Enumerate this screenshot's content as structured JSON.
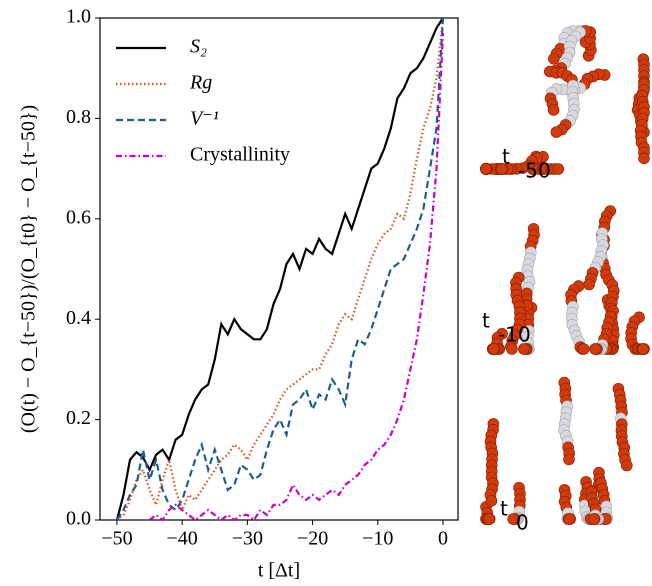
{
  "chart_data": {
    "type": "line",
    "xlabel": "t [Δt]",
    "ylabel": "(O(t) − O_{t−50})/(O_{t0} − O_{t−50})",
    "x": [
      -50,
      -49,
      -48,
      -47,
      -46,
      -45,
      -44,
      -43,
      -42,
      -41,
      -40,
      -39,
      -38,
      -37,
      -36,
      -35,
      -34,
      -33,
      -32,
      -31,
      -30,
      -29,
      -28,
      -27,
      -26,
      -25,
      -24,
      -23,
      -22,
      -21,
      -20,
      -19,
      -18,
      -17,
      -16,
      -15,
      -14,
      -13,
      -12,
      -11,
      -10,
      -9,
      -8,
      -7,
      -6,
      -5,
      -4,
      -3,
      -2,
      -1,
      0
    ],
    "series": [
      {
        "name": "S₂",
        "color": "#000000",
        "dash": "solid",
        "values": [
          0,
          0.05,
          0.12,
          0.135,
          0.125,
          0.1,
          0.13,
          0.14,
          0.12,
          0.16,
          0.17,
          0.21,
          0.24,
          0.26,
          0.27,
          0.32,
          0.39,
          0.37,
          0.4,
          0.38,
          0.37,
          0.36,
          0.36,
          0.38,
          0.43,
          0.46,
          0.51,
          0.53,
          0.5,
          0.54,
          0.53,
          0.56,
          0.54,
          0.53,
          0.57,
          0.61,
          0.58,
          0.62,
          0.66,
          0.7,
          0.71,
          0.74,
          0.78,
          0.84,
          0.86,
          0.89,
          0.9,
          0.92,
          0.95,
          0.98,
          1.0
        ]
      },
      {
        "name": "Rg",
        "color": "#d9541c",
        "dash": "dotted",
        "values": [
          0,
          0.01,
          0.04,
          0.08,
          0.1,
          0.06,
          0.03,
          0.08,
          0.12,
          0.06,
          0.02,
          0.05,
          0.04,
          0.06,
          0.08,
          0.1,
          0.12,
          0.13,
          0.15,
          0.14,
          0.12,
          0.15,
          0.17,
          0.19,
          0.21,
          0.24,
          0.26,
          0.27,
          0.28,
          0.29,
          0.3,
          0.3,
          0.33,
          0.35,
          0.39,
          0.41,
          0.4,
          0.44,
          0.48,
          0.52,
          0.55,
          0.57,
          0.58,
          0.61,
          0.6,
          0.65,
          0.72,
          0.78,
          0.82,
          0.88,
          1.0
        ]
      },
      {
        "name": "V⁻¹",
        "color": "#1f5f8b",
        "dash": "dashed",
        "values": [
          0,
          0.02,
          0.05,
          0.07,
          0.14,
          0.08,
          0.12,
          0.06,
          0.03,
          0.02,
          0.04,
          0.08,
          0.12,
          0.15,
          0.1,
          0.14,
          0.1,
          0.06,
          0.07,
          0.11,
          0.1,
          0.08,
          0.09,
          0.14,
          0.18,
          0.2,
          0.17,
          0.23,
          0.24,
          0.26,
          0.22,
          0.25,
          0.24,
          0.28,
          0.26,
          0.23,
          0.32,
          0.36,
          0.35,
          0.38,
          0.42,
          0.46,
          0.5,
          0.51,
          0.52,
          0.55,
          0.58,
          0.62,
          0.7,
          0.78,
          1.0
        ]
      },
      {
        "name": "Crystallinity",
        "color": "#cc00cc",
        "dash": "dashdot",
        "values": [
          null,
          null,
          null,
          null,
          null,
          0,
          0.01,
          0,
          0.02,
          0.03,
          0.02,
          0.01,
          0,
          0.01,
          0.02,
          0.01,
          0,
          0.01,
          0,
          0.01,
          0.01,
          0,
          0.02,
          0.01,
          0.03,
          0.03,
          0.04,
          0.07,
          0.05,
          0.04,
          0.05,
          0.04,
          0.05,
          0.06,
          0.05,
          0.07,
          0.08,
          0.09,
          0.11,
          0.12,
          0.14,
          0.15,
          0.17,
          0.2,
          0.24,
          0.3,
          0.36,
          0.45,
          0.55,
          0.7,
          0.97
        ]
      }
    ],
    "xlim": [
      -52.6,
      2.3
    ],
    "ylim": [
      0,
      1
    ],
    "xticks": [
      {
        "value": -50,
        "label": "−50"
      },
      {
        "value": -40,
        "label": "−40"
      },
      {
        "value": -30,
        "label": "−30"
      },
      {
        "value": -20,
        "label": "−20"
      },
      {
        "value": -10,
        "label": "−10"
      },
      0
    ],
    "yticks": [
      {
        "value": 0,
        "label": "0.0"
      },
      0.2,
      0.4,
      0.6,
      0.8,
      {
        "value": 1,
        "label": "1.0"
      }
    ],
    "legend": "upper left",
    "grid": false
  },
  "snapshots": [
    {
      "label": "t",
      "subscript": "-50"
    },
    {
      "label": "t",
      "subscript": "-10"
    },
    {
      "label": "t",
      "subscript": "0"
    }
  ]
}
